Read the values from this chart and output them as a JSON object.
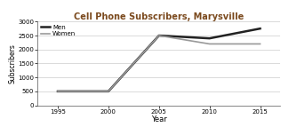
{
  "title": "Cell Phone Subscribers, Marysville",
  "title_color": "#7B4A1E",
  "xlabel": "Year",
  "ylabel": "Subscribers",
  "years": [
    1995,
    2000,
    2005,
    2010,
    2015
  ],
  "men_values": [
    500,
    500,
    2500,
    2400,
    2750
  ],
  "women_values": [
    500,
    500,
    2500,
    2200,
    2200
  ],
  "men_color": "#222222",
  "women_color": "#999999",
  "men_linewidth": 1.8,
  "women_linewidth": 1.2,
  "ylim": [
    0,
    3000
  ],
  "yticks": [
    0,
    500,
    1000,
    1500,
    2000,
    2500,
    3000
  ],
  "xticks": [
    1995,
    2000,
    2005,
    2010,
    2015
  ],
  "background_color": "#ffffff",
  "grid_color": "#cccccc"
}
